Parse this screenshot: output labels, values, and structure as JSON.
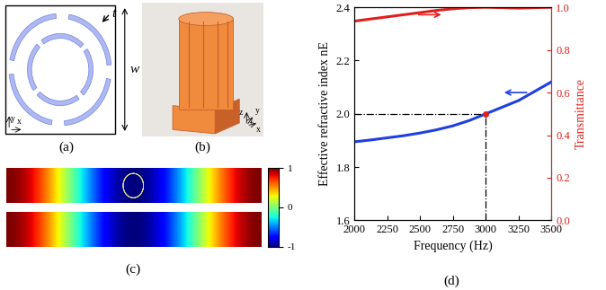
{
  "panels": {
    "labels": [
      "(a)",
      "(b)",
      "(c)",
      "(d)"
    ]
  },
  "schematic": {
    "dimension_labels": [
      "t",
      "w"
    ],
    "axis_labels": [
      "y",
      "x"
    ]
  },
  "photo": {
    "axis_labels": [
      "z",
      "y",
      "x"
    ]
  },
  "field_map": {
    "colorbar_range": [
      -1,
      1
    ],
    "colorbar_ticks": [
      1,
      0,
      -1
    ]
  },
  "chart_data": {
    "type": "line",
    "xlabel": "Frequency (Hz)",
    "ylabel": "Effective refractive index nE",
    "y2label": "Transmittance",
    "x": [
      2000,
      2125,
      2250,
      2375,
      2500,
      2625,
      2750,
      2875,
      3000,
      3125,
      3250,
      3375,
      3500
    ],
    "xlim": [
      2000,
      3500
    ],
    "xticks": [
      2000,
      2250,
      2500,
      2750,
      3000,
      3250,
      3500
    ],
    "ylim": [
      1.6,
      2.4
    ],
    "yticks": [
      1.6,
      1.8,
      2.0,
      2.2,
      2.4
    ],
    "y2lim": [
      0.0,
      1.0
    ],
    "y2ticks": [
      0.0,
      0.2,
      0.4,
      0.6,
      0.8,
      1.0
    ],
    "highlight": {
      "x": 3000,
      "y": 2.0
    },
    "series": [
      {
        "color": "#1f3fe0",
        "line_style": "solid",
        "values": [
          1.895,
          1.902,
          1.91,
          1.918,
          1.928,
          1.94,
          1.955,
          1.975,
          2.0,
          2.025,
          2.05,
          2.085,
          2.12
        ]
      },
      {
        "color": "#e0201c",
        "line_style": "solid",
        "axis": "y2",
        "values": [
          0.935,
          0.945,
          0.955,
          0.965,
          0.975,
          0.985,
          0.993,
          0.998,
          1.0,
          0.998,
          0.996,
          0.998,
          1.0
        ]
      }
    ]
  }
}
